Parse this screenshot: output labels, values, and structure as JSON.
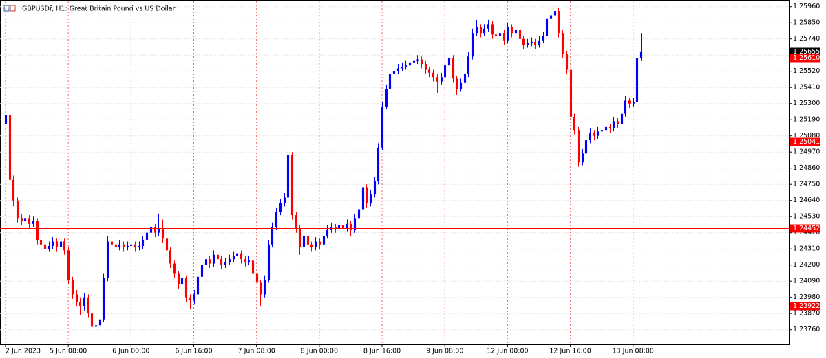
{
  "chart_data": {
    "type": "candlestick",
    "title": "GBPUSDf, H1:  Great Britain Pound vs US Dollar",
    "bull_color": "#0000ff",
    "bear_color": "#ff0000",
    "grid": true,
    "xlim": [
      -1.4,
      199.7
    ],
    "ylim": [
      1.23665,
      1.25996
    ],
    "xticks": [
      {
        "value": 0,
        "label": "2 Jun 2023"
      },
      {
        "value": 16,
        "label": "5 Jun 08:00"
      },
      {
        "value": 32,
        "label": "6 Jun 00:00"
      },
      {
        "value": 48,
        "label": "6 Jun 16:00"
      },
      {
        "value": 64,
        "label": "7 Jun 08:00"
      },
      {
        "value": 80,
        "label": "8 Jun 00:00"
      },
      {
        "value": 96,
        "label": "8 Jun 16:00"
      },
      {
        "value": 112,
        "label": "9 Jun 08:00"
      },
      {
        "value": 128,
        "label": "12 Jun 00:00"
      },
      {
        "value": 144,
        "label": "12 Jun 16:00"
      },
      {
        "value": 160,
        "label": "13 Jun 08:00"
      }
    ],
    "yticks": [
      {
        "value": 1.2596,
        "label": "1.25960"
      },
      {
        "value": 1.2585,
        "label": "1.25850"
      },
      {
        "value": 1.2574,
        "label": "1.25740"
      },
      {
        "value": 1.2563,
        "label": "1.25630"
      },
      {
        "value": 1.2552,
        "label": "1.25520"
      },
      {
        "value": 1.2541,
        "label": "1.25410"
      },
      {
        "value": 1.253,
        "label": "1.25300"
      },
      {
        "value": 1.2519,
        "label": "1.25190"
      },
      {
        "value": 1.2508,
        "label": "1.25080"
      },
      {
        "value": 1.2497,
        "label": "1.24970"
      },
      {
        "value": 1.2486,
        "label": "1.24860"
      },
      {
        "value": 1.2475,
        "label": "1.24750"
      },
      {
        "value": 1.2464,
        "label": "1.24640"
      },
      {
        "value": 1.2453,
        "label": "1.24530"
      },
      {
        "value": 1.2442,
        "label": "1.24420"
      },
      {
        "value": 1.2431,
        "label": "1.24310"
      },
      {
        "value": 1.242,
        "label": "1.24200"
      },
      {
        "value": 1.2409,
        "label": "1.24090"
      },
      {
        "value": 1.2398,
        "label": "1.23980"
      },
      {
        "value": 1.2387,
        "label": "1.23870"
      },
      {
        "value": 1.2376,
        "label": "1.23760"
      }
    ],
    "levels": [
      {
        "value": 1.25655,
        "label": "1.25655",
        "color": "#808080",
        "label_color": "#000000"
      },
      {
        "value": 1.2561,
        "label": "1.25610",
        "color": "#ff0000",
        "label_color": "#ff0000"
      },
      {
        "value": 1.25041,
        "label": "1.25041",
        "color": "#ff0000",
        "label_color": "#ff0000"
      },
      {
        "value": 1.24452,
        "label": "1.24452",
        "color": "#ff0000",
        "label_color": "#ff0000"
      },
      {
        "value": 1.23922,
        "label": "1.23922",
        "color": "#ff0000",
        "label_color": "#ff0000"
      }
    ],
    "candles": [
      [
        1.2516,
        1.2526,
        1.2514,
        1.2522
      ],
      [
        1.2522,
        1.2524,
        1.2474,
        1.2478
      ],
      [
        1.2478,
        1.2481,
        1.246,
        1.2464
      ],
      [
        1.2464,
        1.2466,
        1.2449,
        1.2452
      ],
      [
        1.2452,
        1.2455,
        1.2447,
        1.245
      ],
      [
        1.245,
        1.2455,
        1.2448,
        1.2452
      ],
      [
        1.2452,
        1.2454,
        1.2445,
        1.2448
      ],
      [
        1.2448,
        1.2453,
        1.2446,
        1.245
      ],
      [
        1.245,
        1.2452,
        1.2434,
        1.2437
      ],
      [
        1.2437,
        1.2439,
        1.2431,
        1.2434
      ],
      [
        1.2434,
        1.2436,
        1.2428,
        1.2431
      ],
      [
        1.2431,
        1.2436,
        1.2429,
        1.2433
      ],
      [
        1.2433,
        1.2439,
        1.2431,
        1.2436
      ],
      [
        1.2436,
        1.2438,
        1.2429,
        1.2432
      ],
      [
        1.2432,
        1.2439,
        1.243,
        1.2436
      ],
      [
        1.2436,
        1.2438,
        1.2427,
        1.243
      ],
      [
        1.243,
        1.2432,
        1.2407,
        1.241
      ],
      [
        1.241,
        1.2412,
        1.2397,
        1.24
      ],
      [
        1.24,
        1.2403,
        1.2392,
        1.2395
      ],
      [
        1.2395,
        1.2398,
        1.2386,
        1.2392
      ],
      [
        1.2392,
        1.2401,
        1.2389,
        1.2398
      ],
      [
        1.2398,
        1.24,
        1.2384,
        1.2387
      ],
      [
        1.2387,
        1.2389,
        1.2368,
        1.2378
      ],
      [
        1.2378,
        1.2383,
        1.2372,
        1.2379
      ],
      [
        1.2379,
        1.2386,
        1.2376,
        1.2383
      ],
      [
        1.2383,
        1.2414,
        1.2381,
        1.2411
      ],
      [
        1.2411,
        1.244,
        1.2409,
        1.2436
      ],
      [
        1.2436,
        1.2438,
        1.243,
        1.2434
      ],
      [
        1.2434,
        1.2436,
        1.2429,
        1.2432
      ],
      [
        1.2432,
        1.2437,
        1.243,
        1.2434
      ],
      [
        1.2434,
        1.2436,
        1.2429,
        1.2432
      ],
      [
        1.2432,
        1.2436,
        1.243,
        1.2433
      ],
      [
        1.2433,
        1.2437,
        1.2431,
        1.2434
      ],
      [
        1.2434,
        1.2436,
        1.2429,
        1.2432
      ],
      [
        1.2432,
        1.2436,
        1.243,
        1.2433
      ],
      [
        1.2433,
        1.244,
        1.2431,
        1.2437
      ],
      [
        1.2437,
        1.2445,
        1.2435,
        1.2442
      ],
      [
        1.2442,
        1.2449,
        1.244,
        1.2446
      ],
      [
        1.2446,
        1.2448,
        1.2439,
        1.2442
      ],
      [
        1.2442,
        1.2455,
        1.244,
        1.2445
      ],
      [
        1.2445,
        1.2451,
        1.2435,
        1.2438
      ],
      [
        1.2438,
        1.244,
        1.2427,
        1.243
      ],
      [
        1.243,
        1.2432,
        1.2418,
        1.2421
      ],
      [
        1.2421,
        1.2423,
        1.2411,
        1.2414
      ],
      [
        1.2414,
        1.2416,
        1.2404,
        1.2407
      ],
      [
        1.2407,
        1.2414,
        1.2405,
        1.2411
      ],
      [
        1.2411,
        1.2413,
        1.2395,
        1.2398
      ],
      [
        1.2398,
        1.24,
        1.239,
        1.2396
      ],
      [
        1.2396,
        1.2403,
        1.2393,
        1.24
      ],
      [
        1.24,
        1.2415,
        1.2398,
        1.2412
      ],
      [
        1.2412,
        1.2423,
        1.241,
        1.242
      ],
      [
        1.242,
        1.2427,
        1.2418,
        1.2424
      ],
      [
        1.2424,
        1.2426,
        1.2418,
        1.2421
      ],
      [
        1.2421,
        1.243,
        1.2419,
        1.2427
      ],
      [
        1.2427,
        1.2429,
        1.2421,
        1.2424
      ],
      [
        1.2424,
        1.2426,
        1.2417,
        1.242
      ],
      [
        1.242,
        1.2425,
        1.2418,
        1.2422
      ],
      [
        1.2422,
        1.2427,
        1.242,
        1.2424
      ],
      [
        1.2424,
        1.2429,
        1.2422,
        1.2426
      ],
      [
        1.2426,
        1.2433,
        1.2424,
        1.2428
      ],
      [
        1.2428,
        1.243,
        1.2421,
        1.2424
      ],
      [
        1.2424,
        1.2426,
        1.2419,
        1.2422
      ],
      [
        1.2422,
        1.2426,
        1.242,
        1.2423
      ],
      [
        1.2423,
        1.2425,
        1.2411,
        1.2414
      ],
      [
        1.2414,
        1.2416,
        1.2405,
        1.2408
      ],
      [
        1.2408,
        1.241,
        1.2392,
        1.24
      ],
      [
        1.24,
        1.2413,
        1.2398,
        1.241
      ],
      [
        1.241,
        1.2437,
        1.2408,
        1.2434
      ],
      [
        1.2434,
        1.2449,
        1.2432,
        1.2446
      ],
      [
        1.2446,
        1.2459,
        1.2444,
        1.2456
      ],
      [
        1.2456,
        1.2465,
        1.2454,
        1.2462
      ],
      [
        1.2462,
        1.2469,
        1.246,
        1.2466
      ],
      [
        1.2466,
        1.2498,
        1.2464,
        1.2495
      ],
      [
        1.2495,
        1.2497,
        1.2451,
        1.2454
      ],
      [
        1.2454,
        1.2456,
        1.2442,
        1.2445
      ],
      [
        1.2445,
        1.2447,
        1.2427,
        1.2432
      ],
      [
        1.2432,
        1.2443,
        1.243,
        1.244
      ],
      [
        1.244,
        1.2442,
        1.2428,
        1.2434
      ],
      [
        1.2434,
        1.2436,
        1.2429,
        1.2432
      ],
      [
        1.2432,
        1.2439,
        1.243,
        1.2436
      ],
      [
        1.2436,
        1.2438,
        1.2431,
        1.2434
      ],
      [
        1.2434,
        1.2443,
        1.2432,
        1.244
      ],
      [
        1.244,
        1.2447,
        1.2438,
        1.2444
      ],
      [
        1.2444,
        1.2449,
        1.2442,
        1.2446
      ],
      [
        1.2446,
        1.2448,
        1.2442,
        1.2445
      ],
      [
        1.2445,
        1.245,
        1.2443,
        1.2447
      ],
      [
        1.2447,
        1.2449,
        1.2441,
        1.2445
      ],
      [
        1.2445,
        1.2451,
        1.2443,
        1.2448
      ],
      [
        1.2448,
        1.245,
        1.244,
        1.2444
      ],
      [
        1.2444,
        1.2455,
        1.2442,
        1.2452
      ],
      [
        1.2452,
        1.2461,
        1.245,
        1.2458
      ],
      [
        1.2458,
        1.2476,
        1.2456,
        1.2473
      ],
      [
        1.2473,
        1.2475,
        1.2459,
        1.2462
      ],
      [
        1.2462,
        1.2471,
        1.246,
        1.2468
      ],
      [
        1.2468,
        1.248,
        1.2466,
        1.2477
      ],
      [
        1.2477,
        1.2503,
        1.2475,
        1.25
      ],
      [
        1.25,
        1.2531,
        1.2498,
        1.2528
      ],
      [
        1.2528,
        1.2543,
        1.2526,
        1.254
      ],
      [
        1.254,
        1.2553,
        1.2538,
        1.255
      ],
      [
        1.255,
        1.2555,
        1.2548,
        1.2552
      ],
      [
        1.2552,
        1.2557,
        1.255,
        1.2554
      ],
      [
        1.2554,
        1.2558,
        1.2552,
        1.2555
      ],
      [
        1.2555,
        1.2559,
        1.2553,
        1.2556
      ],
      [
        1.2556,
        1.2561,
        1.2554,
        1.2558
      ],
      [
        1.2558,
        1.2562,
        1.2556,
        1.2559
      ],
      [
        1.2559,
        1.2563,
        1.2557,
        1.256
      ],
      [
        1.256,
        1.2562,
        1.2554,
        1.2557
      ],
      [
        1.2557,
        1.2559,
        1.255,
        1.2553
      ],
      [
        1.2553,
        1.2555,
        1.2548,
        1.2551
      ],
      [
        1.2551,
        1.2553,
        1.2545,
        1.2548
      ],
      [
        1.2548,
        1.255,
        1.2537,
        1.2545
      ],
      [
        1.2545,
        1.2551,
        1.2543,
        1.2548
      ],
      [
        1.2548,
        1.2559,
        1.2546,
        1.2556
      ],
      [
        1.2556,
        1.2564,
        1.2554,
        1.2561
      ],
      [
        1.2561,
        1.2563,
        1.2544,
        1.2547
      ],
      [
        1.2547,
        1.2549,
        1.2536,
        1.254
      ],
      [
        1.254,
        1.2547,
        1.2538,
        1.2544
      ],
      [
        1.2544,
        1.2553,
        1.2542,
        1.255
      ],
      [
        1.255,
        1.2565,
        1.2548,
        1.2562
      ],
      [
        1.2562,
        1.2581,
        1.256,
        1.2578
      ],
      [
        1.2578,
        1.2587,
        1.2576,
        1.2582
      ],
      [
        1.2582,
        1.2584,
        1.2575,
        1.2578
      ],
      [
        1.2578,
        1.2584,
        1.2576,
        1.2581
      ],
      [
        1.2581,
        1.2587,
        1.2579,
        1.2584
      ],
      [
        1.2584,
        1.2586,
        1.2574,
        1.2577
      ],
      [
        1.2577,
        1.2579,
        1.2573,
        1.2576
      ],
      [
        1.2576,
        1.2581,
        1.2574,
        1.2578
      ],
      [
        1.2578,
        1.258,
        1.257,
        1.2573
      ],
      [
        1.2573,
        1.2585,
        1.2571,
        1.2582
      ],
      [
        1.2582,
        1.2584,
        1.2575,
        1.2578
      ],
      [
        1.2578,
        1.2583,
        1.2576,
        1.258
      ],
      [
        1.258,
        1.2582,
        1.2571,
        1.2574
      ],
      [
        1.2574,
        1.2576,
        1.2567,
        1.257
      ],
      [
        1.257,
        1.2574,
        1.2568,
        1.2571
      ],
      [
        1.2571,
        1.2575,
        1.2569,
        1.2572
      ],
      [
        1.2572,
        1.2574,
        1.2567,
        1.257
      ],
      [
        1.257,
        1.2576,
        1.2568,
        1.2573
      ],
      [
        1.2573,
        1.2579,
        1.2571,
        1.2576
      ],
      [
        1.2576,
        1.2591,
        1.2574,
        1.2588
      ],
      [
        1.2588,
        1.2593,
        1.2586,
        1.259
      ],
      [
        1.259,
        1.2596,
        1.2588,
        1.2593
      ],
      [
        1.2593,
        1.2595,
        1.2575,
        1.2578
      ],
      [
        1.2578,
        1.258,
        1.2561,
        1.2564
      ],
      [
        1.2564,
        1.2566,
        1.255,
        1.2553
      ],
      [
        1.2553,
        1.2555,
        1.2518,
        1.2521
      ],
      [
        1.2521,
        1.2523,
        1.2509,
        1.2512
      ],
      [
        1.2512,
        1.2514,
        1.2487,
        1.249
      ],
      [
        1.249,
        1.2499,
        1.2488,
        1.2496
      ],
      [
        1.2496,
        1.2508,
        1.2494,
        1.2505
      ],
      [
        1.2505,
        1.2513,
        1.2503,
        1.251
      ],
      [
        1.251,
        1.2512,
        1.2505,
        1.2508
      ],
      [
        1.2508,
        1.2514,
        1.2506,
        1.2511
      ],
      [
        1.2511,
        1.2515,
        1.2509,
        1.2512
      ],
      [
        1.2512,
        1.2517,
        1.251,
        1.2514
      ],
      [
        1.2514,
        1.2516,
        1.251,
        1.2513
      ],
      [
        1.2513,
        1.2521,
        1.2511,
        1.2518
      ],
      [
        1.2518,
        1.252,
        1.2513,
        1.2516
      ],
      [
        1.2516,
        1.2526,
        1.2514,
        1.2523
      ],
      [
        1.2523,
        1.2535,
        1.2521,
        1.2532
      ],
      [
        1.2532,
        1.2534,
        1.2527,
        1.253
      ],
      [
        1.253,
        1.2534,
        1.2528,
        1.2531
      ],
      [
        1.2531,
        1.2564,
        1.2529,
        1.2561
      ],
      [
        1.2561,
        1.2578,
        1.2559,
        1.25655
      ]
    ]
  }
}
